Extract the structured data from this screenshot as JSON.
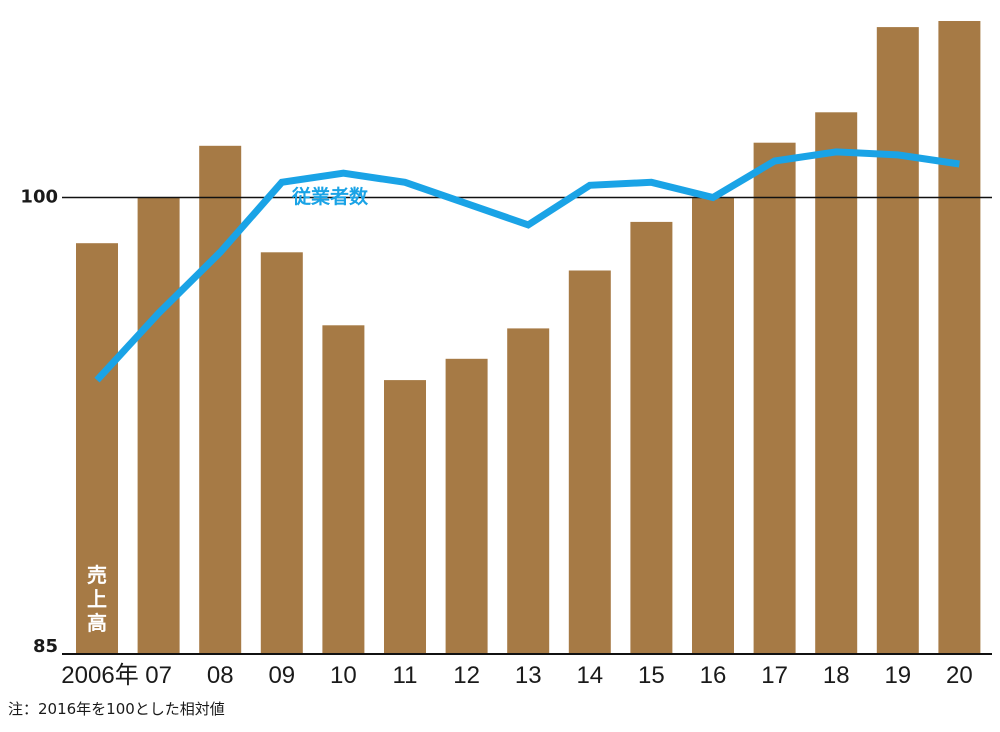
{
  "chart_data": {
    "type": "bar",
    "categories": [
      "2006年",
      "07",
      "08",
      "09",
      "10",
      "11",
      "12",
      "13",
      "14",
      "15",
      "16",
      "17",
      "18",
      "19",
      "20"
    ],
    "series": [
      {
        "name": "売上高",
        "kind": "bar",
        "color": "#a67a45",
        "values": [
          98.5,
          100.0,
          101.7,
          98.2,
          95.8,
          94.0,
          94.7,
          95.7,
          97.6,
          99.2,
          100.0,
          101.8,
          102.8,
          105.6,
          105.8
        ]
      },
      {
        "name": "従業者数",
        "kind": "line",
        "color": "#1aa3e6",
        "values": [
          94.0,
          96.2,
          98.2,
          100.5,
          100.8,
          100.5,
          99.8,
          99.1,
          100.4,
          100.5,
          100.0,
          101.2,
          101.5,
          101.4,
          101.1
        ]
      }
    ],
    "ylim": [
      85,
      105.8
    ],
    "yticks": [
      85,
      100
    ],
    "reference_line": 100,
    "grid": false,
    "note": "注：2016年を100とした相対値"
  }
}
